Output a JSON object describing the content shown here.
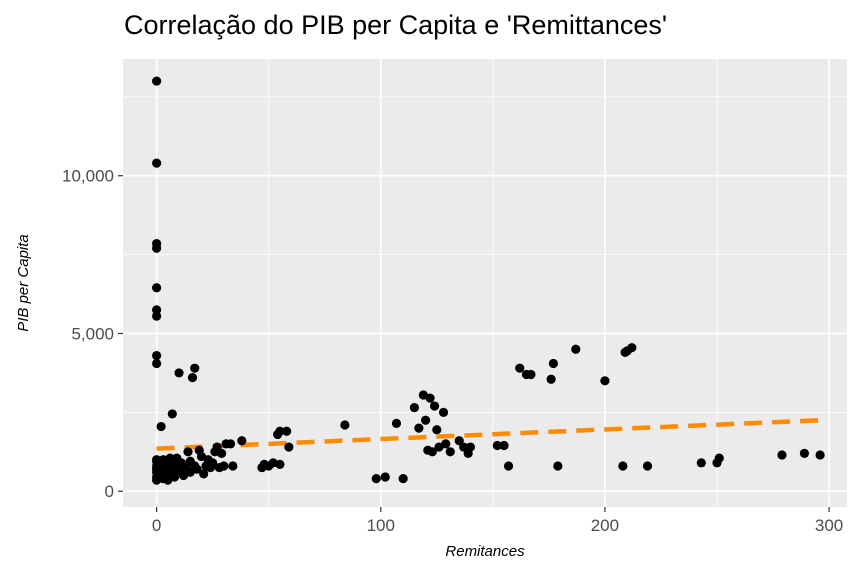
{
  "chart_data": {
    "type": "scatter",
    "title": "Correlação do PIB per Capita e 'Remittances'",
    "xlabel": "Remitances",
    "ylabel": "PIB per Capita",
    "xlim": [
      -15,
      308
    ],
    "ylim": [
      -500,
      13700
    ],
    "xticks": [
      0,
      100,
      200,
      300
    ],
    "xtick_labels": [
      "0",
      "100",
      "200",
      "300"
    ],
    "yticks": [
      0,
      5000,
      10000
    ],
    "ytick_labels": [
      "0",
      "5,000",
      "10,000"
    ],
    "grid": true,
    "colors": {
      "panel": "#ebebeb",
      "grid": "#ffffff",
      "points": "#000000",
      "trend": "#ff8c00"
    },
    "points": [
      [
        0,
        13000
      ],
      [
        0,
        10400
      ],
      [
        0,
        7850
      ],
      [
        0,
        7700
      ],
      [
        0,
        6450
      ],
      [
        0,
        5750
      ],
      [
        0,
        5550
      ],
      [
        0,
        4300
      ],
      [
        0,
        4050
      ],
      [
        0,
        1000
      ],
      [
        0,
        950
      ],
      [
        0,
        800
      ],
      [
        0,
        700
      ],
      [
        0,
        600
      ],
      [
        0,
        450
      ],
      [
        0,
        350
      ],
      [
        1,
        850
      ],
      [
        1,
        550
      ],
      [
        2,
        2050
      ],
      [
        2,
        900
      ],
      [
        2,
        650
      ],
      [
        3,
        1000
      ],
      [
        3,
        400
      ],
      [
        4,
        750
      ],
      [
        4,
        500
      ],
      [
        5,
        900
      ],
      [
        5,
        350
      ],
      [
        6,
        700
      ],
      [
        6,
        1050
      ],
      [
        7,
        2450
      ],
      [
        7,
        600
      ],
      [
        8,
        800
      ],
      [
        8,
        450
      ],
      [
        9,
        1050
      ],
      [
        10,
        3750
      ],
      [
        10,
        650
      ],
      [
        11,
        900
      ],
      [
        12,
        500
      ],
      [
        13,
        750
      ],
      [
        14,
        1250
      ],
      [
        15,
        600
      ],
      [
        15,
        950
      ],
      [
        16,
        3600
      ],
      [
        17,
        3900
      ],
      [
        17,
        800
      ],
      [
        18,
        700
      ],
      [
        19,
        1300
      ],
      [
        20,
        1100
      ],
      [
        21,
        550
      ],
      [
        22,
        800
      ],
      [
        23,
        1000
      ],
      [
        24,
        750
      ],
      [
        25,
        900
      ],
      [
        26,
        1250
      ],
      [
        27,
        1400
      ],
      [
        28,
        750
      ],
      [
        29,
        1200
      ],
      [
        30,
        800
      ],
      [
        31,
        1500
      ],
      [
        33,
        1500
      ],
      [
        34,
        800
      ],
      [
        38,
        1600
      ],
      [
        47,
        750
      ],
      [
        48,
        850
      ],
      [
        50,
        800
      ],
      [
        52,
        900
      ],
      [
        54,
        1800
      ],
      [
        55,
        1900
      ],
      [
        55,
        850
      ],
      [
        58,
        1900
      ],
      [
        59,
        1400
      ],
      [
        84,
        2100
      ],
      [
        98,
        400
      ],
      [
        102,
        450
      ],
      [
        107,
        2150
      ],
      [
        110,
        400
      ],
      [
        115,
        2650
      ],
      [
        117,
        2000
      ],
      [
        119,
        3050
      ],
      [
        120,
        2250
      ],
      [
        121,
        1300
      ],
      [
        122,
        2950
      ],
      [
        123,
        1250
      ],
      [
        124,
        2700
      ],
      [
        125,
        1950
      ],
      [
        126,
        1400
      ],
      [
        128,
        2500
      ],
      [
        129,
        1500
      ],
      [
        131,
        1250
      ],
      [
        135,
        1600
      ],
      [
        137,
        1400
      ],
      [
        139,
        1200
      ],
      [
        140,
        1400
      ],
      [
        152,
        1450
      ],
      [
        155,
        1450
      ],
      [
        157,
        800
      ],
      [
        162,
        3900
      ],
      [
        165,
        3700
      ],
      [
        167,
        3700
      ],
      [
        176,
        3550
      ],
      [
        177,
        4050
      ],
      [
        179,
        800
      ],
      [
        187,
        4500
      ],
      [
        200,
        3500
      ],
      [
        208,
        800
      ],
      [
        209,
        4400
      ],
      [
        210,
        4450
      ],
      [
        212,
        4550
      ],
      [
        219,
        800
      ],
      [
        243,
        900
      ],
      [
        250,
        900
      ],
      [
        251,
        1050
      ],
      [
        279,
        1150
      ],
      [
        289,
        1200
      ],
      [
        296,
        1150
      ]
    ],
    "trend": {
      "style": "dashed",
      "x": [
        0,
        296
      ],
      "y": [
        1350,
        2250
      ]
    }
  }
}
